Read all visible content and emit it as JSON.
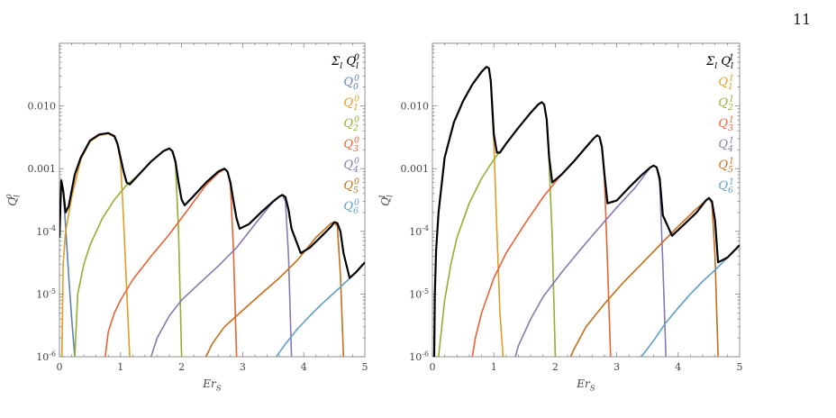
{
  "page_number": "11",
  "colors": {
    "sum": "#000000",
    "l0": "#5E81B5",
    "l1": "#E19C24",
    "l2": "#8FB032",
    "l3": "#EB6235",
    "l4": "#8778B3",
    "l5": "#C56E1A",
    "l6": "#5D9EC7"
  },
  "chart_data": [
    {
      "type": "line",
      "xlabel": "Er_S",
      "ylabel": "Q_l^0",
      "xlim": [
        0,
        5
      ],
      "ylim": [
        1e-06,
        0.1
      ],
      "yscale": "log",
      "x_ticks": [
        "0",
        "1",
        "2",
        "3",
        "4",
        "5"
      ],
      "y_ticks": [
        "10^-6",
        "10^-5",
        "10^-4",
        "0.001",
        "0.010"
      ],
      "legend_position": "top-right",
      "legend": [
        "Σ_l Q_l^0",
        "Q_0^0",
        "Q_1^0",
        "Q_2^0",
        "Q_3^0",
        "Q_4^0",
        "Q_5^0",
        "Q_6^0"
      ],
      "series": [
        {
          "name": "Σ_l Q_l^0",
          "color_key": "sum",
          "x": [
            0.0,
            0.03,
            0.06,
            0.1,
            0.15,
            0.2,
            0.25,
            0.35,
            0.5,
            0.65,
            0.8,
            0.9,
            0.95,
            1.0,
            1.05,
            1.1,
            1.15,
            1.3,
            1.5,
            1.7,
            1.8,
            1.85,
            1.9,
            1.95,
            2.0,
            2.05,
            2.2,
            2.4,
            2.6,
            2.7,
            2.75,
            2.8,
            2.85,
            2.9,
            2.95,
            3.1,
            3.3,
            3.5,
            3.6,
            3.65,
            3.7,
            3.75,
            3.8,
            3.95,
            4.1,
            4.3,
            4.45,
            4.5,
            4.55,
            4.6,
            4.65,
            4.75,
            4.85,
            5.0
          ],
          "y": [
            8e-05,
            0.00065,
            0.00045,
            0.0002,
            0.00025,
            0.00045,
            0.0008,
            0.0015,
            0.0028,
            0.0035,
            0.0037,
            0.0033,
            0.0025,
            0.0015,
            0.0009,
            0.0006,
            0.00056,
            0.0008,
            0.0013,
            0.0019,
            0.0021,
            0.0019,
            0.0013,
            0.0006,
            0.00032,
            0.00026,
            0.00037,
            0.0006,
            0.0009,
            0.001,
            0.0009,
            0.0006,
            0.0003,
            0.00016,
            0.00011,
            0.00013,
            0.0002,
            0.0003,
            0.00036,
            0.00038,
            0.00035,
            0.00022,
            0.00011,
            4.5e-05,
            5.5e-05,
            8.5e-05,
            0.00012,
            0.00014,
            0.000135,
            0.0001,
            4.5e-05,
            1.8e-05,
            2.2e-05,
            3.2e-05
          ]
        },
        {
          "name": "Q_0^0",
          "color_key": "l0",
          "x": [
            0.0,
            0.03,
            0.06,
            0.1,
            0.15,
            0.2,
            0.25
          ],
          "y": [
            8e-05,
            0.00065,
            0.00045,
            0.00012,
            2e-05,
            4e-06,
            1e-06
          ]
        },
        {
          "name": "Q_1^0",
          "color_key": "l1",
          "x": [
            0.04,
            0.06,
            0.1,
            0.2,
            0.35,
            0.5,
            0.65,
            0.8,
            0.9,
            0.95,
            1.0,
            1.05,
            1.1,
            1.15
          ],
          "y": [
            1e-06,
            3e-05,
            0.0001,
            0.00035,
            0.0014,
            0.0027,
            0.0034,
            0.0036,
            0.0032,
            0.0024,
            0.0013,
            0.00015,
            1.2e-05,
            1e-06
          ]
        },
        {
          "name": "Q_2^0",
          "color_key": "l2",
          "x": [
            0.25,
            0.3,
            0.4,
            0.5,
            0.7,
            0.9,
            1.1,
            1.3,
            1.5,
            1.7,
            1.8,
            1.85,
            1.9,
            1.95,
            2.0
          ],
          "y": [
            1e-06,
            1e-05,
            3e-05,
            6e-05,
            0.00016,
            0.00032,
            0.00055,
            0.0008,
            0.0013,
            0.0019,
            0.0021,
            0.0019,
            0.0012,
            0.0001,
            1e-06
          ]
        },
        {
          "name": "Q_3^0",
          "color_key": "l3",
          "x": [
            0.75,
            0.8,
            0.9,
            1.0,
            1.2,
            1.5,
            1.8,
            2.1,
            2.4,
            2.6,
            2.7,
            2.75,
            2.8,
            2.85,
            2.9
          ],
          "y": [
            1e-06,
            2.5e-06,
            5e-06,
            8e-06,
            1.7e-05,
            4e-05,
            9e-05,
            0.00022,
            0.00055,
            0.00085,
            0.00098,
            0.0009,
            0.00055,
            5e-05,
            1e-06
          ]
        },
        {
          "name": "Q_4^0",
          "color_key": "l4",
          "x": [
            1.5,
            1.6,
            1.8,
            2.0,
            2.3,
            2.6,
            2.9,
            3.2,
            3.5,
            3.6,
            3.65,
            3.7,
            3.75,
            3.8
          ],
          "y": [
            1e-06,
            2e-06,
            4.5e-06,
            8e-06,
            1.5e-05,
            2.8e-05,
            5.5e-05,
            0.00013,
            0.0003,
            0.00036,
            0.00038,
            0.0003,
            4e-05,
            1e-06
          ]
        },
        {
          "name": "Q_5^0",
          "color_key": "l5",
          "x": [
            2.4,
            2.5,
            2.7,
            3.0,
            3.3,
            3.6,
            3.9,
            4.2,
            4.45,
            4.5,
            4.55,
            4.6,
            4.65
          ],
          "y": [
            1e-06,
            1.6e-06,
            3e-06,
            5.5e-06,
            1e-05,
            1.8e-05,
            3.5e-05,
            8e-05,
            0.000135,
            0.00014,
            0.00012,
            2e-05,
            1e-06
          ]
        },
        {
          "name": "Q_6^0",
          "color_key": "l6",
          "x": [
            3.55,
            3.7,
            3.9,
            4.1,
            4.3,
            4.5,
            4.7,
            4.85,
            5.0
          ],
          "y": [
            1e-06,
            1.6e-06,
            2.8e-06,
            4.5e-06,
            7e-06,
            1.05e-05,
            1.6e-05,
            2.2e-05,
            3.2e-05
          ]
        }
      ]
    },
    {
      "type": "line",
      "xlabel": "Er_S",
      "ylabel": "Q_l^1",
      "xlim": [
        0,
        5
      ],
      "ylim": [
        1e-06,
        0.1
      ],
      "yscale": "log",
      "x_ticks": [
        "0",
        "1",
        "2",
        "3",
        "4",
        "5"
      ],
      "y_ticks": [
        "10^-6",
        "10^-5",
        "10^-4",
        "0.001",
        "0.010"
      ],
      "legend_position": "top-right",
      "legend": [
        "Σ_l Q_l^1",
        "Q_1^1",
        "Q_2^1",
        "Q_3^1",
        "Q_4^1",
        "Q_5^1",
        "Q_6^1"
      ],
      "series": [
        {
          "name": "Σ_l Q_l^1",
          "color_key": "sum",
          "x": [
            0.03,
            0.04,
            0.06,
            0.1,
            0.2,
            0.35,
            0.5,
            0.65,
            0.8,
            0.88,
            0.92,
            0.95,
            1.0,
            1.05,
            1.1,
            1.2,
            1.4,
            1.6,
            1.72,
            1.78,
            1.82,
            1.86,
            1.9,
            1.95,
            2.1,
            2.3,
            2.5,
            2.62,
            2.68,
            2.72,
            2.76,
            2.8,
            2.85,
            3.0,
            3.2,
            3.4,
            3.55,
            3.6,
            3.65,
            3.7,
            3.75,
            3.9,
            4.1,
            4.3,
            4.45,
            4.5,
            4.55,
            4.6,
            4.65,
            4.8,
            5.0
          ],
          "y": [
            1e-06,
            1e-05,
            5e-05,
            0.0002,
            0.0015,
            0.0055,
            0.012,
            0.022,
            0.035,
            0.042,
            0.04,
            0.025,
            0.0035,
            0.0018,
            0.0018,
            0.0025,
            0.0045,
            0.0078,
            0.0105,
            0.0115,
            0.0105,
            0.006,
            0.0015,
            0.0006,
            0.0008,
            0.0013,
            0.0022,
            0.003,
            0.0034,
            0.0032,
            0.0022,
            0.0008,
            0.00028,
            0.00031,
            0.0005,
            0.00078,
            0.00105,
            0.00112,
            0.00105,
            0.0007,
            0.00018,
            8.5e-05,
            0.00013,
            0.0002,
            0.00031,
            0.00034,
            0.0003,
            0.00015,
            3.2e-05,
            3.8e-05,
            6e-05
          ]
        },
        {
          "name": "Q_1^1",
          "color_key": "l1",
          "x": [
            0.03,
            0.04,
            0.06,
            0.1,
            0.2,
            0.35,
            0.5,
            0.65,
            0.8,
            0.88,
            0.92,
            0.95,
            1.0,
            1.05,
            1.1,
            1.15
          ],
          "y": [
            1e-06,
            1e-05,
            5e-05,
            0.0002,
            0.0015,
            0.0055,
            0.012,
            0.022,
            0.035,
            0.042,
            0.04,
            0.025,
            0.0025,
            0.0001,
            5e-06,
            1e-06
          ]
        },
        {
          "name": "Q_2^1",
          "color_key": "l2",
          "x": [
            0.1,
            0.2,
            0.3,
            0.4,
            0.6,
            0.8,
            1.0,
            1.2,
            1.4,
            1.6,
            1.72,
            1.78,
            1.82,
            1.86,
            1.9,
            1.95,
            2.0
          ],
          "y": [
            1e-06,
            8e-06,
            3e-05,
            8e-05,
            0.00028,
            0.0007,
            0.0014,
            0.0025,
            0.0045,
            0.0078,
            0.0105,
            0.0115,
            0.0105,
            0.006,
            0.0012,
            8e-05,
            1e-06
          ]
        },
        {
          "name": "Q_3^1",
          "color_key": "l3",
          "x": [
            0.65,
            0.7,
            0.8,
            1.0,
            1.2,
            1.5,
            1.8,
            2.1,
            2.4,
            2.62,
            2.68,
            2.72,
            2.76,
            2.8,
            2.85,
            2.9
          ],
          "y": [
            1e-06,
            2e-06,
            5e-06,
            1.8e-05,
            4.5e-05,
            0.00013,
            0.00035,
            0.0008,
            0.0017,
            0.003,
            0.0034,
            0.0032,
            0.0022,
            0.0007,
            3e-05,
            1e-06
          ]
        },
        {
          "name": "Q_4^1",
          "color_key": "l4",
          "x": [
            1.35,
            1.4,
            1.6,
            1.8,
            2.1,
            2.4,
            2.7,
            3.0,
            3.3,
            3.55,
            3.6,
            3.65,
            3.7,
            3.75,
            3.8
          ],
          "y": [
            1e-06,
            1.5e-06,
            4e-06,
            9e-06,
            2.2e-05,
            5e-05,
            0.00011,
            0.00024,
            0.0005,
            0.00105,
            0.00112,
            0.00105,
            0.0006,
            3e-05,
            1e-06
          ]
        },
        {
          "name": "Q_5^1",
          "color_key": "l5",
          "x": [
            2.25,
            2.3,
            2.5,
            2.8,
            3.1,
            3.4,
            3.7,
            4.0,
            4.3,
            4.45,
            4.5,
            4.55,
            4.6,
            4.65
          ],
          "y": [
            1e-06,
            1.3e-06,
            3e-06,
            7e-06,
            1.5e-05,
            3e-05,
            6e-05,
            0.00012,
            0.00023,
            0.00031,
            0.00034,
            0.00028,
            4e-05,
            1e-06
          ]
        },
        {
          "name": "Q_6^1",
          "color_key": "l6",
          "x": [
            3.4,
            3.6,
            3.8,
            4.0,
            4.2,
            4.4,
            4.6,
            4.8,
            5.0
          ],
          "y": [
            1e-06,
            1.8e-06,
            3.5e-06,
            6e-06,
            1e-05,
            1.6e-05,
            2.4e-05,
            3.8e-05,
            6e-05
          ]
        }
      ]
    }
  ]
}
